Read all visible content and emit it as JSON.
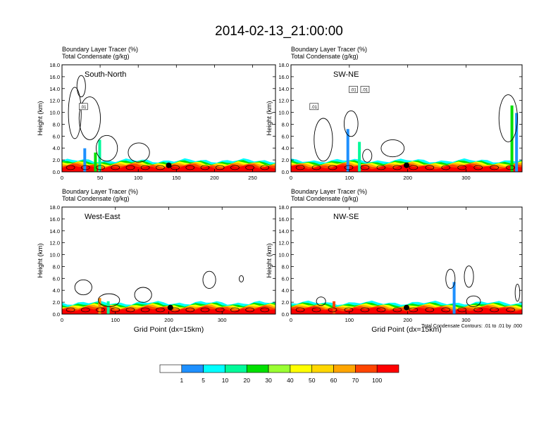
{
  "title": "2014-02-13_21:00:00",
  "chart_data": [
    {
      "type": "heatmap",
      "subtitle_line1": "Boundary Layer Tracer   (%)",
      "subtitle_line2": "Total Condensate   (g/kg)",
      "label": "South-North",
      "ylabel": "Height (km)",
      "xlabel": "",
      "xlim": [
        0,
        280
      ],
      "ylim": [
        0,
        18
      ],
      "xticks": [
        0,
        50,
        100,
        150,
        200,
        250
      ],
      "yticks": [
        "0.0",
        "2.0",
        "4.0",
        "6.0",
        "8.0",
        "10.0",
        "12.0",
        "14.0",
        "16.0",
        "18.0"
      ],
      "marker_x": 140,
      "contour_labels": [
        ".01"
      ]
    },
    {
      "type": "heatmap",
      "subtitle_line1": "Boundary Layer Tracer   (%)",
      "subtitle_line2": "Total Condensate   (g/kg)",
      "label": "SW-NE",
      "ylabel": "Height (km)",
      "xlabel": "",
      "xlim": [
        0,
        396
      ],
      "ylim": [
        0,
        18
      ],
      "xticks": [
        0,
        100,
        200,
        300
      ],
      "yticks": [
        "0.0",
        "2.0",
        "4.0",
        "6.0",
        "8.0",
        "10.0",
        "12.0",
        "14.0",
        "16.0",
        "18.0"
      ],
      "marker_x": 198,
      "contour_labels": [
        ".01",
        ".01",
        ".01"
      ]
    },
    {
      "type": "heatmap",
      "subtitle_line1": "Boundary Layer Tracer   (%)",
      "subtitle_line2": "Total Condensate   (g/kg)",
      "label": "West-East",
      "ylabel": "Height (km)",
      "xlabel": "Grid Point (dx=15km)",
      "xlim": [
        0,
        400
      ],
      "ylim": [
        0,
        18
      ],
      "xticks": [
        0,
        100,
        200,
        300
      ],
      "yticks": [
        "0.0",
        "2.0",
        "4.0",
        "6.0",
        "8.0",
        "10.0",
        "12.0",
        "14.0",
        "16.0",
        "18.0"
      ],
      "marker_x": 203,
      "contour_labels": []
    },
    {
      "type": "heatmap",
      "subtitle_line1": "Boundary Layer Tracer   (%)",
      "subtitle_line2": "Total Condensate   (g/kg)",
      "label": "NW-SE",
      "ylabel": "Height (km)",
      "xlabel": "Grid Point (dx=15km)",
      "xlim": [
        0,
        396
      ],
      "ylim": [
        0,
        18
      ],
      "xticks": [
        0,
        100,
        200,
        300
      ],
      "yticks": [
        "0.0",
        "2.0",
        "4.0",
        "6.0",
        "8.0",
        "10.0",
        "12.0",
        "14.0",
        "16.0",
        "18.0"
      ],
      "marker_x": 198,
      "contour_labels": [],
      "footnote": "Total Condensate Contours: .01 to .01 by .000"
    }
  ],
  "colorbar": {
    "labels": [
      "1",
      "5",
      "10",
      "20",
      "30",
      "40",
      "50",
      "60",
      "70",
      "100"
    ],
    "colors": [
      "#ffffff",
      "#1e90ff",
      "#00ffff",
      "#00fa9a",
      "#00e000",
      "#9aff32",
      "#ffff00",
      "#ffd700",
      "#ffa500",
      "#ff4500",
      "#ff0000"
    ]
  }
}
